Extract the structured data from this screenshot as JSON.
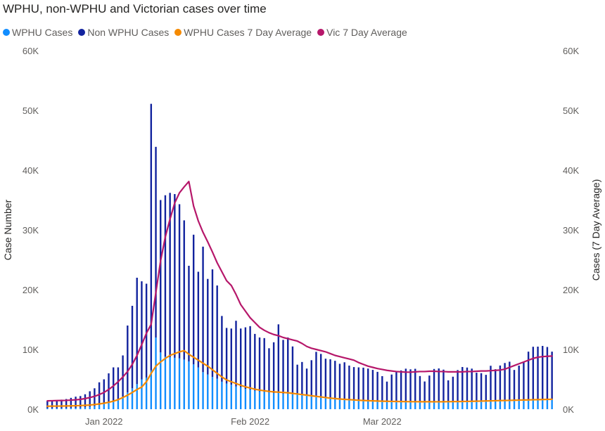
{
  "chart_data": {
    "type": "bar+line",
    "title": "WPHU, non-WPHU and Victorian cases over time",
    "ylabel": "Case Number",
    "y2label": "Cases (7 Day Average)",
    "ylim": [
      0,
      60000
    ],
    "y2lim": [
      0,
      60000
    ],
    "yticks": [
      "0K",
      "10K",
      "20K",
      "30K",
      "40K",
      "50K",
      "60K"
    ],
    "y2ticks": [
      "0K",
      "10K",
      "20K",
      "30K",
      "40K",
      "50K",
      "60K"
    ],
    "xticks": [
      {
        "label": "Jan 2022",
        "date": "2022-01-01"
      },
      {
        "label": "Feb 2022",
        "date": "2022-02-01"
      },
      {
        "label": "Mar 2022",
        "date": "2022-03-01"
      }
    ],
    "start_date": "2021-12-20",
    "legend_position": "top-left",
    "grid": false,
    "series": [
      {
        "name": "WPHU Cases",
        "type": "bar",
        "stacked": true,
        "color": "#118dff",
        "values": [
          160,
          160,
          170,
          180,
          190,
          210,
          230,
          260,
          310,
          400,
          520,
          700,
          850,
          1050,
          1350,
          1650,
          2100,
          2800,
          3500,
          4200,
          5000,
          5300,
          6500,
          12000,
          9500,
          8800,
          8700,
          8600,
          8500,
          8300,
          8000,
          7500,
          7000,
          6200,
          5800,
          5400,
          5100,
          4600,
          4300,
          4100,
          3800,
          3700,
          3400,
          3300,
          3100,
          3000,
          2900,
          2800,
          2700,
          2700,
          2600,
          2600,
          2500,
          2450,
          2400,
          2300,
          2200,
          2100,
          2050,
          1950,
          1850,
          1800,
          1700,
          1650,
          1600,
          1550,
          1500,
          1450,
          1400,
          1380,
          1350,
          1330,
          1320,
          1300,
          1300,
          1290,
          1280,
          1270,
          1260,
          1250,
          1240,
          1230,
          1230,
          1220,
          1220,
          1230,
          1240,
          1250,
          1260,
          1270,
          1290,
          1310,
          1330,
          1350,
          1370,
          1390,
          1410,
          1430,
          1450,
          1470,
          1490,
          1510,
          1530,
          1550,
          1570,
          1590,
          1610,
          1630
        ]
      },
      {
        "name": "Non WPHU Cases",
        "type": "bar",
        "stacked": true,
        "color": "#12239e",
        "values": [
          1240,
          1240,
          1330,
          1420,
          1510,
          1690,
          1870,
          1940,
          2190,
          2600,
          2980,
          3800,
          4150,
          4950,
          5650,
          5350,
          6900,
          11200,
          13800,
          17800,
          16400,
          15700,
          44600,
          31900,
          25500,
          27000,
          27500,
          27400,
          25800,
          23300,
          16000,
          21700,
          16000,
          21000,
          16000,
          18000,
          15600,
          11000,
          9300,
          9400,
          11000,
          9800,
          10300,
          10600,
          9500,
          9000,
          9000,
          7400,
          8500,
          11500,
          9000,
          9400,
          8000,
          5000,
          5500,
          4500,
          6000,
          7500,
          7200,
          6500,
          6500,
          6300,
          5900,
          6200,
          5700,
          5500,
          5500,
          5500,
          5400,
          5200,
          4900,
          4200,
          3300,
          4500,
          4900,
          5200,
          5500,
          5400,
          5500,
          4300,
          3400,
          4400,
          5500,
          5600,
          5400,
          3600,
          4200,
          5300,
          5800,
          5700,
          5500,
          4800,
          4700,
          4400,
          5900,
          5300,
          5900,
          6300,
          6500,
          5100,
          5800,
          6400,
          8100,
          8900,
          8900,
          9000,
          8800,
          8000
        ]
      },
      {
        "name": "WPHU Cases 7 Day Average",
        "type": "line",
        "color": "#f58a00",
        "values": [
          500,
          510,
          520,
          530,
          540,
          560,
          580,
          610,
          650,
          700,
          780,
          880,
          1000,
          1150,
          1350,
          1600,
          1950,
          2350,
          2800,
          3300,
          3700,
          4600,
          6000,
          7200,
          7900,
          8500,
          9000,
          9300,
          9600,
          9800,
          9200,
          8700,
          8200,
          7700,
          7200,
          6600,
          6000,
          5400,
          4900,
          4600,
          4300,
          4000,
          3750,
          3550,
          3350,
          3200,
          3080,
          2980,
          2900,
          2850,
          2800,
          2750,
          2650,
          2550,
          2450,
          2350,
          2250,
          2150,
          2050,
          1950,
          1850,
          1780,
          1710,
          1650,
          1600,
          1550,
          1500,
          1460,
          1430,
          1400,
          1370,
          1340,
          1320,
          1300,
          1290,
          1280,
          1270,
          1260,
          1260,
          1250,
          1250,
          1250,
          1240,
          1240,
          1250,
          1260,
          1270,
          1280,
          1290,
          1300,
          1320,
          1340,
          1360,
          1380,
          1400,
          1420,
          1440,
          1460,
          1480,
          1500,
          1520,
          1540,
          1560,
          1580,
          1600,
          1620,
          1640,
          1660
        ]
      },
      {
        "name": "Vic 7 Day Average",
        "type": "line",
        "color": "#b6176a",
        "values": [
          1400,
          1420,
          1440,
          1460,
          1480,
          1520,
          1570,
          1650,
          1780,
          1950,
          2150,
          2450,
          2800,
          3300,
          3900,
          4600,
          5400,
          6300,
          7500,
          9000,
          10800,
          12700,
          14200,
          19500,
          24800,
          28800,
          31800,
          34500,
          36200,
          37200,
          38100,
          34000,
          31500,
          29600,
          28000,
          26300,
          24500,
          23000,
          21500,
          20700,
          19200,
          17500,
          16400,
          15300,
          14500,
          13700,
          13200,
          12800,
          12500,
          12300,
          12000,
          11800,
          11600,
          11400,
          11000,
          10500,
          10200,
          10000,
          9800,
          9600,
          9300,
          9000,
          8800,
          8600,
          8400,
          8200,
          7800,
          7500,
          7200,
          7000,
          6800,
          6650,
          6500,
          6400,
          6300,
          6250,
          6200,
          6200,
          6250,
          6300,
          6300,
          6350,
          6350,
          6300,
          6300,
          6250,
          6250,
          6250,
          6250,
          6300,
          6300,
          6350,
          6400,
          6400,
          6450,
          6500,
          6550,
          6700,
          7000,
          7300,
          7600,
          7900,
          8200,
          8500,
          8700,
          8800,
          8850,
          8900
        ]
      }
    ]
  }
}
